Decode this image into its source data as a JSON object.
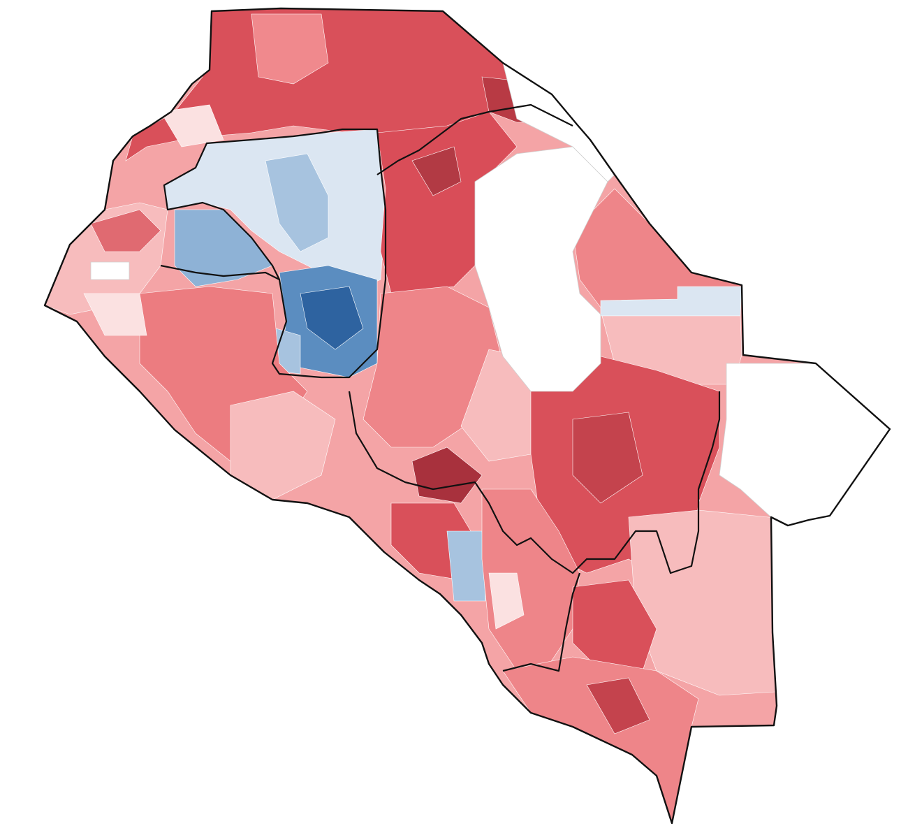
{
  "map": {
    "color_scale": {
      "strong_republican": "#a8313d",
      "republican": "#d9505a",
      "lean_republican": "#ee8589",
      "slight_republican": "#f7bcbd",
      "tossup_red": "#fbe1e1",
      "tossup_blue": "#dbe6f2",
      "lean_democrat": "#a7c3df",
      "democrat": "#5b8dc0",
      "strong_democrat": "#2e63a0",
      "no_data": "#ffffff"
    },
    "boundary_color": "#111111",
    "precinct_border_color": "#ffffff"
  }
}
